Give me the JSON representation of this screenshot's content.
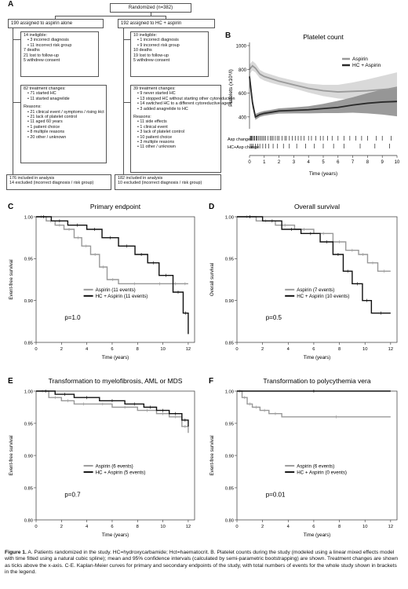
{
  "panel_a": {
    "label": "A",
    "randomized": "Randomized (n=382)",
    "left_assign": "190 assigned to aspirin alone",
    "right_assign": "192 assigned to HC + aspirin",
    "left_ineligible": [
      "14 ineligible:",
      "3 incorrect diagnosis",
      "11 incorrect risk group",
      "7 deaths",
      "21 lost to follow-up",
      "5 withdrew consent"
    ],
    "left_changes": [
      "82 treatment changes:",
      "71 started HC",
      "11 started anagrelide",
      "",
      "Reasons:",
      "21 clinical event / symptoms / rising Hct",
      "21 lack of platelet control",
      "11 aged 60 years",
      "1 patient choice",
      "8 multiple reasons",
      "20 other / unknown"
    ],
    "right_ineligible": [
      "10 ineligible:",
      "1 incorrect diagnosis",
      "9 incorrect risk group",
      "10 deaths",
      "19 lost to follow-up",
      "5 withdrew consent"
    ],
    "right_changes": [
      "39 treatment changes:",
      "9 never started HC",
      "13 stopped HC without starting other cytoreduction",
      "14 switched HC to a different cytoreductive agent",
      "3 added anagrelide to HC",
      "",
      "Reasons:",
      "11 side effects",
      "1 clinical event",
      "3 lack of platelet control",
      "10 patient choice",
      "3 multiple reasons",
      "11 other / unknown"
    ],
    "left_result": [
      "176 included in analysis",
      "14 excluded (incorrect diagnosis / risk group)"
    ],
    "right_result": [
      "182 included in analysis",
      "10 excluded (incorrect diagnosis / risk group)"
    ]
  },
  "panel_b": {
    "label": "B",
    "title": "Platelet count",
    "ylabel": "Platelets (x10⁹/l)",
    "xlabel": "Time (years)",
    "legend": [
      "Aspirin",
      "HC + Aspirin"
    ],
    "rug_labels": [
      "Asp change",
      "HC+Asp change"
    ],
    "colors": {
      "aspirin": "#9a9a9a",
      "hc": "#2a2a2a",
      "aspirin_band": "#d2d2d2",
      "hc_band": "#8a8a8a"
    }
  },
  "panels_km": [
    {
      "label": "C",
      "title": "Primary endpoint",
      "ylabel": "Event-free survival",
      "xlabel": "Time (years)",
      "legend": [
        "Aspirin (11 events)",
        "HC + Aspirin (11 events)"
      ],
      "p": "p=1.0"
    },
    {
      "label": "D",
      "title": "Overall survival",
      "ylabel": "Overall survival",
      "xlabel": "Time (years)",
      "legend": [
        "Aspirin (7 events)",
        "HC + Aspirin (10 events)"
      ],
      "p": "p=0.5"
    },
    {
      "label": "E",
      "title": "Transformation to myelofibrosis, AML or MDS",
      "ylabel": "Event-free survival",
      "xlabel": "Time (years)",
      "legend": [
        "Aspirin (6 events)",
        "HC + Aspirin (5 events)"
      ],
      "p": "p=0.7"
    },
    {
      "label": "F",
      "title": "Transformation to polycythemia vera",
      "ylabel": "Event-free survival",
      "xlabel": "Time (years)",
      "legend": [
        "Aspirin (6 events)",
        "HC + Aspirin (0 events)"
      ],
      "p": "p=0.01"
    }
  ],
  "caption": {
    "lead": "Figure 1.",
    "text": " A. Patients randomized in the study. HC=hydroxycarbamide; Hct=haematocrit. B. Platelet counts during the study (modeled using a linear mixed effects model with time fitted using a natural cubic spline); mean and 95% confidence intervals (calculated by semi-parametric bootstrapping) are shown. Treatment changes are shown as ticks above the x-axis. C-E. Kaplan-Meier curves for primary and secondary endpoints of the study, with total numbers of events for the whole study shown in brackets in the legend."
  },
  "chart_data": [
    {
      "type": "line",
      "panel": "B",
      "title": "Platelet count",
      "xlabel": "Time (years)",
      "ylabel": "Platelets (x10⁹/l)",
      "xlim": [
        0,
        10
      ],
      "ylim": [
        300,
        1000
      ],
      "xticks": [
        0,
        1,
        2,
        3,
        4,
        5,
        6,
        7,
        8,
        9,
        10
      ],
      "yticks": [
        400,
        600,
        800,
        1000
      ],
      "x": [
        0,
        0.2,
        0.4,
        0.7,
        1,
        1.5,
        2,
        3,
        4,
        5,
        6,
        7,
        8,
        9,
        10
      ],
      "series": [
        {
          "name": "Aspirin",
          "values": [
            800,
            830,
            810,
            760,
            740,
            720,
            700,
            670,
            640,
            620,
            610,
            615,
            620,
            630,
            640
          ],
          "lower": [
            760,
            790,
            775,
            725,
            705,
            685,
            668,
            640,
            605,
            575,
            555,
            545,
            535,
            525,
            515
          ],
          "upper": [
            840,
            870,
            850,
            795,
            775,
            755,
            735,
            705,
            680,
            670,
            670,
            690,
            715,
            745,
            775
          ]
        },
        {
          "name": "HC + Aspirin",
          "values": [
            740,
            520,
            400,
            420,
            430,
            440,
            450,
            455,
            460,
            470,
            480,
            500,
            515,
            525,
            530
          ],
          "lower": [
            690,
            480,
            375,
            400,
            410,
            420,
            428,
            430,
            430,
            432,
            432,
            435,
            430,
            420,
            405
          ],
          "upper": [
            790,
            560,
            425,
            440,
            450,
            460,
            472,
            480,
            490,
            510,
            535,
            565,
            600,
            630,
            655
          ]
        }
      ],
      "rug": {
        "Asp change": [
          0.05,
          0.1,
          0.15,
          0.2,
          0.3,
          0.35,
          0.45,
          0.5,
          0.6,
          0.7,
          0.8,
          0.9,
          1.0,
          1.1,
          1.25,
          1.4,
          1.5,
          1.6,
          1.75,
          1.9,
          2.0,
          2.2,
          2.4,
          2.5,
          2.7,
          2.9,
          3.1,
          3.3,
          3.5,
          3.7,
          4.0,
          4.2,
          4.5,
          4.8,
          5.0,
          5.3,
          5.6,
          6.0,
          6.4,
          6.8,
          7.2,
          7.6,
          8.0,
          8.6,
          9.0,
          9.6
        ],
        "HC+Asp change": [
          0.05,
          0.15,
          0.25,
          0.4,
          0.55,
          0.7,
          0.9,
          1.1,
          1.3,
          1.6,
          1.9,
          2.3,
          2.7,
          3.2,
          3.8,
          4.4,
          5.0,
          5.7,
          6.4,
          7.5,
          8.5,
          9.5
        ]
      }
    },
    {
      "type": "line",
      "panel": "C",
      "title": "Primary endpoint",
      "xlabel": "Time (years)",
      "ylabel": "Event-free survival",
      "xlim": [
        0,
        12.5
      ],
      "ylim": [
        0.85,
        1.0
      ],
      "xticks": [
        0,
        2,
        4,
        6,
        8,
        10,
        12
      ],
      "yticks": [
        0.85,
        0.9,
        0.95,
        1.0
      ],
      "series": [
        {
          "name": "Aspirin (11 events)",
          "x": [
            0,
            0.8,
            1.5,
            2.2,
            3.0,
            3.6,
            4.3,
            5.0,
            5.6,
            6.5,
            9.0,
            10.5,
            11.5,
            12
          ],
          "values": [
            1.0,
            0.995,
            0.99,
            0.985,
            0.975,
            0.965,
            0.955,
            0.94,
            0.925,
            0.92,
            0.92,
            0.92,
            0.92,
            0.92
          ]
        },
        {
          "name": "HC + Aspirin (11 events)",
          "x": [
            0,
            1.2,
            2.5,
            4.0,
            5.2,
            6.5,
            7.8,
            8.8,
            9.7,
            10.8,
            11.6,
            12
          ],
          "values": [
            1.0,
            0.995,
            0.99,
            0.985,
            0.975,
            0.965,
            0.955,
            0.945,
            0.93,
            0.91,
            0.885,
            0.86
          ]
        }
      ]
    },
    {
      "type": "line",
      "panel": "D",
      "title": "Overall survival",
      "xlabel": "Time (years)",
      "ylabel": "Overall survival",
      "xlim": [
        0,
        12.5
      ],
      "ylim": [
        0.85,
        1.0
      ],
      "xticks": [
        0,
        2,
        4,
        6,
        8,
        10,
        12
      ],
      "yticks": [
        0.85,
        0.9,
        0.95,
        1.0
      ],
      "series": [
        {
          "name": "Aspirin (7 events)",
          "x": [
            0,
            1.5,
            3.0,
            4.5,
            6.0,
            7.5,
            8.5,
            9.5,
            10.2,
            11.0,
            12
          ],
          "values": [
            1.0,
            0.995,
            0.99,
            0.985,
            0.98,
            0.97,
            0.96,
            0.955,
            0.945,
            0.935,
            0.935
          ]
        },
        {
          "name": "HC + Aspirin (10 events)",
          "x": [
            0,
            2.0,
            3.5,
            5.0,
            6.5,
            7.5,
            8.3,
            9.0,
            9.8,
            10.5,
            12
          ],
          "values": [
            1.0,
            0.995,
            0.985,
            0.98,
            0.97,
            0.955,
            0.935,
            0.92,
            0.9,
            0.885,
            0.885
          ]
        }
      ]
    },
    {
      "type": "line",
      "panel": "E",
      "title": "Transformation to myelofibrosis, AML or MDS",
      "xlabel": "Time (years)",
      "ylabel": "Event-free survival",
      "xlim": [
        0,
        12.5
      ],
      "ylim": [
        0.8,
        1.0
      ],
      "xticks": [
        0,
        2,
        4,
        6,
        8,
        10,
        12
      ],
      "yticks": [
        0.8,
        0.85,
        0.9,
        0.95,
        1.0
      ],
      "series": [
        {
          "name": "Aspirin (6 events)",
          "x": [
            0,
            1.0,
            2.0,
            3.0,
            4.5,
            6.0,
            8.0,
            9.5,
            10.5,
            11.5,
            12
          ],
          "values": [
            1.0,
            0.99,
            0.985,
            0.98,
            0.98,
            0.975,
            0.97,
            0.965,
            0.96,
            0.945,
            0.935
          ]
        },
        {
          "name": "HC + Aspirin (5 events)",
          "x": [
            0,
            1.5,
            3.0,
            5.0,
            7.0,
            8.5,
            9.5,
            10.5,
            11.5,
            12
          ],
          "values": [
            1.0,
            0.995,
            0.99,
            0.985,
            0.98,
            0.975,
            0.97,
            0.965,
            0.955,
            0.945
          ]
        }
      ]
    },
    {
      "type": "line",
      "panel": "F",
      "title": "Transformation to polycythemia vera",
      "xlabel": "Time (years)",
      "ylabel": "Event-free survival",
      "xlim": [
        0,
        12.5
      ],
      "ylim": [
        0.8,
        1.0
      ],
      "xticks": [
        0,
        2,
        4,
        6,
        8,
        10,
        12
      ],
      "yticks": [
        0.8,
        0.85,
        0.9,
        0.95,
        1.0
      ],
      "series": [
        {
          "name": "Aspirin (6 events)",
          "x": [
            0,
            0.4,
            0.8,
            1.2,
            1.8,
            2.5,
            3.5,
            12
          ],
          "values": [
            1.0,
            0.99,
            0.98,
            0.975,
            0.97,
            0.965,
            0.96,
            0.96
          ]
        },
        {
          "name": "HC + Aspirin (0 events)",
          "x": [
            0,
            12
          ],
          "values": [
            1.0,
            1.0
          ]
        }
      ]
    }
  ]
}
